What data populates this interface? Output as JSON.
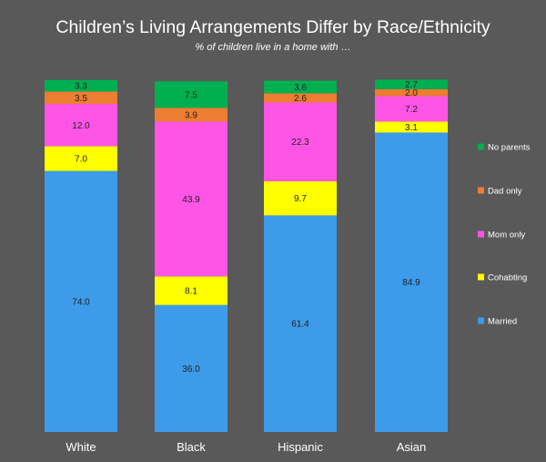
{
  "chart_data": {
    "type": "bar",
    "stacked": true,
    "title": "Children’s Living Arrangements Differ by Race/Ethnicity",
    "subtitle": "% of children live in a home with …",
    "categories": [
      "White",
      "Black",
      "Hispanic",
      "Asian"
    ],
    "series": [
      {
        "name": "Married",
        "color": "#3d9be9",
        "values": [
          74.0,
          36.0,
          61.4,
          84.9
        ]
      },
      {
        "name": "Cohabting",
        "color": "#ffff00",
        "values": [
          7.0,
          8.1,
          9.7,
          3.1
        ]
      },
      {
        "name": "Mom only",
        "color": "#ff55e6",
        "values": [
          12.0,
          43.9,
          22.3,
          7.2
        ]
      },
      {
        "name": "Dad only",
        "color": "#ed7d31",
        "values": [
          3.5,
          3.9,
          2.6,
          2.0
        ]
      },
      {
        "name": "No parents",
        "color": "#00b050",
        "values": [
          3.3,
          7.5,
          3.6,
          2.7
        ]
      }
    ],
    "ylim": [
      0,
      100
    ],
    "grid": false,
    "legend_position": "right"
  },
  "colors": {
    "background": "#595959",
    "text": "#ffffff",
    "label_text": "#222222"
  }
}
